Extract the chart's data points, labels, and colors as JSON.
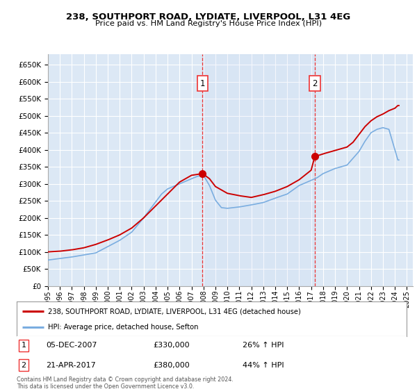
{
  "title": "238, SOUTHPORT ROAD, LYDIATE, LIVERPOOL, L31 4EG",
  "subtitle": "Price paid vs. HM Land Registry's House Price Index (HPI)",
  "plot_bg": "#dce8f5",
  "legend_line1": "238, SOUTHPORT ROAD, LYDIATE, LIVERPOOL, L31 4EG (detached house)",
  "legend_line2": "HPI: Average price, detached house, Sefton",
  "annotation1_label": "1",
  "annotation1_date": "05-DEC-2007",
  "annotation1_price": "£330,000",
  "annotation1_hpi": "26% ↑ HPI",
  "annotation1_year": 2007.92,
  "annotation1_value": 330000,
  "annotation2_label": "2",
  "annotation2_date": "21-APR-2017",
  "annotation2_price": "£380,000",
  "annotation2_hpi": "44% ↑ HPI",
  "annotation2_year": 2017.3,
  "annotation2_value": 380000,
  "footer": "Contains HM Land Registry data © Crown copyright and database right 2024.\nThis data is licensed under the Open Government Licence v3.0.",
  "red_color": "#cc0000",
  "blue_color": "#7aade0",
  "vline_color": "#ee3333",
  "ylim": [
    0,
    680000
  ],
  "xlim_start": 1995,
  "xlim_end": 2025.5,
  "yticks": [
    0,
    50000,
    100000,
    150000,
    200000,
    250000,
    300000,
    350000,
    400000,
    450000,
    500000,
    550000,
    600000,
    650000
  ],
  "xticks": [
    1995,
    1996,
    1997,
    1998,
    1999,
    2000,
    2001,
    2002,
    2003,
    2004,
    2005,
    2006,
    2007,
    2008,
    2009,
    2010,
    2011,
    2012,
    2013,
    2014,
    2015,
    2016,
    2017,
    2018,
    2019,
    2020,
    2021,
    2022,
    2023,
    2024,
    2025
  ]
}
